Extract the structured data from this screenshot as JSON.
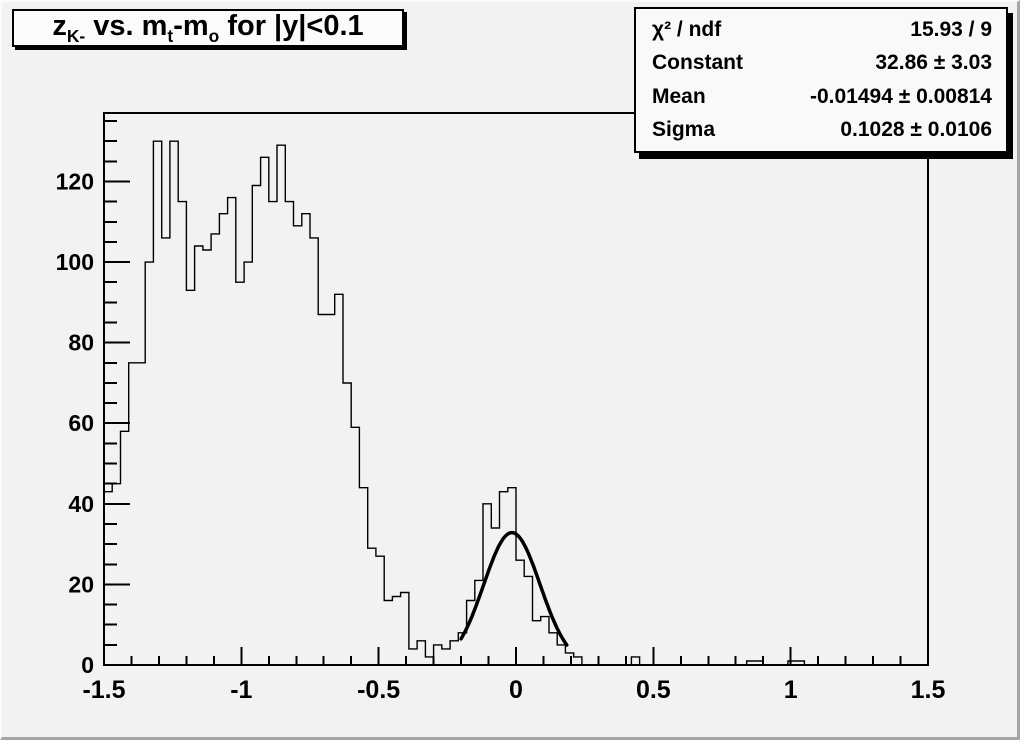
{
  "title": {
    "plain": "z_{K-} vs. m_{t}-m_{o} for |y|<0.1",
    "seg0": "z",
    "sub0": "K-",
    "seg1": " vs. m",
    "sub1": "t",
    "seg2": "-m",
    "sub2": "o",
    "seg3": " for |y|<0.1"
  },
  "stats_box": {
    "rows": [
      {
        "label": "χ² / ndf",
        "value": "15.93 / 9"
      },
      {
        "label": "Constant",
        "value": "32.86 ± 3.03"
      },
      {
        "label": "Mean",
        "value": "-0.01494 ± 0.00814"
      },
      {
        "label": "Sigma",
        "value": "0.1028 ± 0.0106"
      }
    ]
  },
  "colors": {
    "canvas_background": "#f2f2f2",
    "box_fill": "#f9f9f9",
    "line": "#000000",
    "text": "#000000",
    "shadow": "#000000"
  },
  "chart_data": {
    "type": "histogram",
    "title": "z_{K-} vs. m_{t}-m_{o} for |y|<0.1",
    "xlabel": "",
    "ylabel": "",
    "x_min": -1.5,
    "x_max": 1.5,
    "n_bins": 100,
    "bin_width": 0.03,
    "ylim": [
      0,
      137
    ],
    "grid": false,
    "legend_position": "none",
    "x_major_tick_step": 0.5,
    "x_minor_tick_step": 0.1,
    "y_major_tick_step": 20,
    "y_minor_tick_step": 5,
    "x_tick_labels": [
      "-1.5",
      "-1",
      "-0.5",
      "0",
      "0.5",
      "1",
      "1.5"
    ],
    "y_tick_labels": [
      "0",
      "20",
      "40",
      "60",
      "80",
      "100",
      "120"
    ],
    "values": [
      43,
      45,
      58,
      75,
      75,
      100,
      130,
      106,
      130,
      115,
      93,
      104,
      103,
      107,
      112,
      116,
      95,
      100,
      119,
      126,
      115,
      129,
      115,
      109,
      112,
      106,
      87,
      87,
      92,
      70,
      59,
      44,
      29,
      27,
      16,
      17,
      18,
      4,
      6,
      2,
      5,
      4,
      6,
      8,
      16,
      21,
      40,
      34,
      43,
      44,
      26,
      22,
      11,
      12,
      8,
      5,
      3,
      2,
      0,
      0,
      0,
      0,
      0,
      0,
      2,
      0,
      0,
      0,
      0,
      0,
      0,
      0,
      0,
      0,
      0,
      0,
      0,
      0,
      1,
      1,
      0,
      0,
      0,
      1,
      1,
      0,
      0,
      0,
      0,
      0,
      0,
      0,
      0,
      0,
      0,
      0,
      0,
      0,
      0,
      0
    ],
    "fit": {
      "type": "gaussian",
      "constant": 32.86,
      "mean": -0.01494,
      "sigma": 0.1028,
      "draw_range": [
        -0.2,
        0.185
      ],
      "line_width": 3.5
    }
  }
}
